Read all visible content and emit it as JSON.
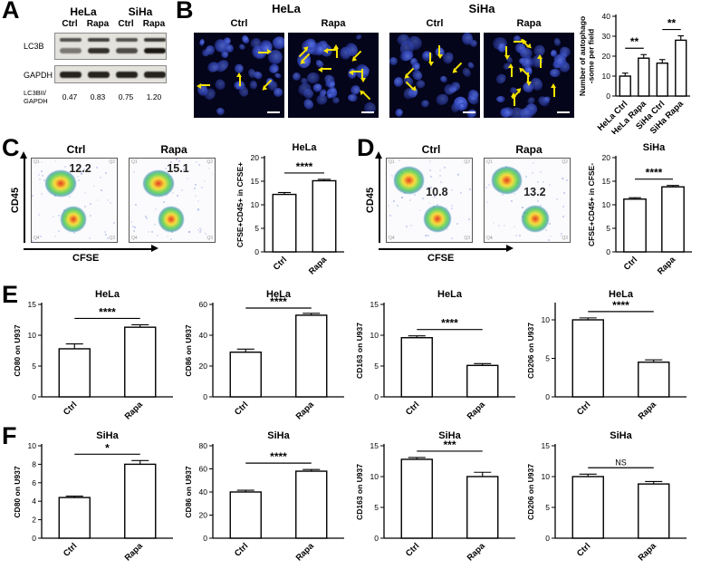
{
  "panel_a": {
    "letter": "A",
    "groups": [
      "HeLa",
      "SiHa"
    ],
    "lanes": [
      "Ctrl",
      "Rapa",
      "Ctrl",
      "Rapa"
    ],
    "blots": [
      "LC3B",
      "GAPDH"
    ],
    "ratio_label_line1": "LC3BII/",
    "ratio_label_line2": "GAPDH",
    "ratios": [
      "0.47",
      "0.83",
      "0.75",
      "1.20"
    ]
  },
  "panel_b": {
    "letter": "B",
    "groups": [
      "HeLa",
      "SiHa"
    ],
    "images": [
      {
        "label": "Ctrl",
        "arrows": 4
      },
      {
        "label": "Rapa",
        "arrows": 9
      },
      {
        "label": "Ctrl",
        "arrows": 5
      },
      {
        "label": "Rapa",
        "arrows": 10
      }
    ]
  },
  "panel_c": {
    "letter": "C",
    "y_axis": "CD45",
    "x_axis": "CFSE",
    "quadrants": [
      "Q1",
      "Q2",
      "Q3",
      "Q4"
    ],
    "plots": [
      {
        "label": "Ctrl",
        "value": "12.2"
      },
      {
        "label": "Rapa",
        "value": "15.1"
      }
    ]
  },
  "panel_d": {
    "letter": "D",
    "y_axis": "CD45",
    "x_axis": "CFSE",
    "quadrants": [
      "Q1",
      "Q2",
      "Q3",
      "Q4"
    ],
    "plots": [
      {
        "label": "Ctrl",
        "value": "10.8"
      },
      {
        "label": "Rapa",
        "value": "13.2"
      }
    ]
  },
  "panel_e": {
    "letter": "E"
  },
  "panel_f": {
    "letter": "F"
  },
  "chart_data": [
    {
      "type": "bar",
      "id": "autophagosome-count",
      "title": "",
      "ylabel": [
        "Number of autophago",
        "-some per field"
      ],
      "categories": [
        "HeLa Ctrl",
        "HeLa Rapa",
        "SiHa Ctrl",
        "SiHa Rapa"
      ],
      "values": [
        10,
        19,
        16.5,
        28
      ],
      "errors": [
        1.5,
        1.8,
        1.8,
        2.2
      ],
      "ymax": 40,
      "yticks": [
        0,
        10,
        20,
        30,
        40
      ],
      "sig": [
        {
          "from": 0,
          "to": 1,
          "label": "**"
        },
        {
          "from": 2,
          "to": 3,
          "label": "**"
        }
      ]
    },
    {
      "type": "bar",
      "id": "hela-phagocytosis",
      "title": "HeLa",
      "ylabel": [
        "CFSE+CD45+ in CFSE+"
      ],
      "categories": [
        "Ctrl",
        "Rapa"
      ],
      "values": [
        12.2,
        15.1
      ],
      "errors": [
        0.4,
        0.3
      ],
      "ymax": 20,
      "yticks": [
        0,
        5,
        10,
        15,
        20
      ],
      "sig": [
        {
          "from": 0,
          "to": 1,
          "label": "****"
        }
      ]
    },
    {
      "type": "bar",
      "id": "siha-phagocytosis",
      "title": "SiHa",
      "ylabel": [
        "CFSE+CD45+ in CFSE-"
      ],
      "categories": [
        "Ctrl",
        "Rapa"
      ],
      "values": [
        11.2,
        13.8
      ],
      "errors": [
        0.3,
        0.3
      ],
      "ymax": 20,
      "yticks": [
        0,
        5,
        10,
        15,
        20
      ],
      "sig": [
        {
          "from": 0,
          "to": 1,
          "label": "****"
        }
      ]
    },
    {
      "type": "bar",
      "id": "hela-cd80",
      "title": "HeLa",
      "ylabel": [
        "CD80 on U937"
      ],
      "categories": [
        "Ctrl",
        "Rapa"
      ],
      "values": [
        7.8,
        11.3
      ],
      "errors": [
        0.8,
        0.4
      ],
      "ymax": 15,
      "yticks": [
        0,
        5,
        10,
        15
      ],
      "sig": [
        {
          "from": 0,
          "to": 1,
          "label": "****"
        }
      ]
    },
    {
      "type": "bar",
      "id": "hela-cd86",
      "title": "HeLa",
      "ylabel": [
        "CD86 on U937"
      ],
      "categories": [
        "Ctrl",
        "Rapa"
      ],
      "values": [
        29,
        53
      ],
      "errors": [
        2,
        1.2
      ],
      "ymax": 60,
      "yticks": [
        0,
        20,
        40,
        60
      ],
      "sig": [
        {
          "from": 0,
          "to": 1,
          "label": "****"
        }
      ]
    },
    {
      "type": "bar",
      "id": "hela-cd163",
      "title": "HeLa",
      "ylabel": [
        "CD163 on U937"
      ],
      "categories": [
        "Ctrl",
        "Rapa"
      ],
      "values": [
        9.6,
        5.1
      ],
      "errors": [
        0.3,
        0.3
      ],
      "ymax": 15,
      "yticks": [
        0,
        5,
        10,
        15
      ],
      "sig": [
        {
          "from": 0,
          "to": 1,
          "label": "****"
        }
      ]
    },
    {
      "type": "bar",
      "id": "hela-cd206",
      "title": "HeLa",
      "ylabel": [
        "CD206 on U937"
      ],
      "categories": [
        "Ctrl",
        "Rapa"
      ],
      "values": [
        10,
        4.5
      ],
      "errors": [
        0.25,
        0.3
      ],
      "ymax": 12,
      "yticks": [
        0,
        5,
        10
      ],
      "sig": [
        {
          "from": 0,
          "to": 1,
          "label": "****"
        }
      ]
    },
    {
      "type": "bar",
      "id": "siha-cd80",
      "title": "SiHa",
      "ylabel": [
        "CD80 on U937"
      ],
      "categories": [
        "Ctrl",
        "Rapa"
      ],
      "values": [
        4.4,
        8.0
      ],
      "errors": [
        0.15,
        0.4
      ],
      "ymax": 10,
      "yticks": [
        0,
        2,
        4,
        6,
        8,
        10
      ],
      "sig": [
        {
          "from": 0,
          "to": 1,
          "label": "*"
        }
      ]
    },
    {
      "type": "bar",
      "id": "siha-cd86",
      "title": "SiHa",
      "ylabel": [
        "CD86 on U937"
      ],
      "categories": [
        "Ctrl",
        "Rapa"
      ],
      "values": [
        40,
        58
      ],
      "errors": [
        1.5,
        1.5
      ],
      "ymax": 80,
      "yticks": [
        0,
        20,
        40,
        60,
        80
      ],
      "sig": [
        {
          "from": 0,
          "to": 1,
          "label": "****"
        }
      ]
    },
    {
      "type": "bar",
      "id": "siha-cd163",
      "title": "SiHa",
      "ylabel": [
        "CD163 on U937"
      ],
      "categories": [
        "Ctrl",
        "Rapa"
      ],
      "values": [
        12.8,
        10.0
      ],
      "errors": [
        0.3,
        0.7
      ],
      "ymax": 15,
      "yticks": [
        0,
        5,
        10,
        15
      ],
      "sig": [
        {
          "from": 0,
          "to": 1,
          "label": "***"
        }
      ]
    },
    {
      "type": "bar",
      "id": "siha-cd206",
      "title": "SiHa",
      "ylabel": [
        "CD206 on U937"
      ],
      "categories": [
        "Ctrl",
        "Rapa"
      ],
      "values": [
        10.0,
        8.8
      ],
      "errors": [
        0.4,
        0.4
      ],
      "ymax": 15,
      "yticks": [
        0,
        5,
        10,
        15
      ],
      "sig": [
        {
          "from": 0,
          "to": 1,
          "label": "NS"
        }
      ]
    }
  ]
}
